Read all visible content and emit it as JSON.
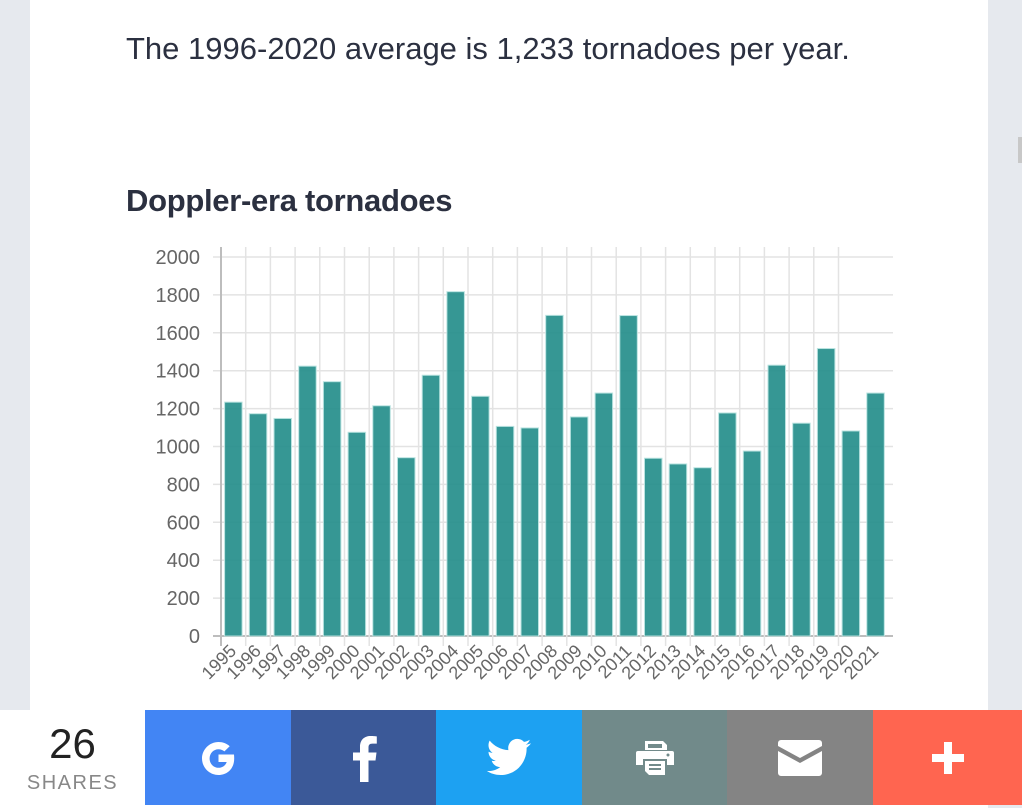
{
  "article": {
    "intro_text": "The 1996-2020 average is 1,233 tornadoes per year.",
    "chart_heading": "Doppler-era tornadoes"
  },
  "share_bar": {
    "count": "26",
    "count_label": "SHARES",
    "buttons": [
      {
        "name": "google",
        "icon": "google-icon",
        "color": "#4285f4"
      },
      {
        "name": "facebook",
        "icon": "facebook-icon",
        "color": "#3b5998"
      },
      {
        "name": "twitter",
        "icon": "twitter-icon",
        "color": "#1da1f2"
      },
      {
        "name": "print",
        "icon": "print-icon",
        "color": "#718a8a"
      },
      {
        "name": "email",
        "icon": "email-icon",
        "color": "#848484"
      },
      {
        "name": "more",
        "icon": "plus-icon",
        "color": "#ff6550"
      }
    ]
  },
  "chart_data": {
    "type": "bar",
    "title": "Doppler-era tornadoes",
    "xlabel": "",
    "ylabel": "",
    "categories": [
      "1995",
      "1996",
      "1997",
      "1998",
      "1999",
      "2000",
      "2001",
      "2002",
      "2003",
      "2004",
      "2005",
      "2006",
      "2007",
      "2008",
      "2009",
      "2010",
      "2011",
      "2012",
      "2013",
      "2014",
      "2015",
      "2016",
      "2017",
      "2018",
      "2019",
      "2020",
      "2021"
    ],
    "values": [
      1234,
      1173,
      1148,
      1424,
      1342,
      1075,
      1215,
      941,
      1376,
      1817,
      1265,
      1106,
      1098,
      1692,
      1156,
      1282,
      1691,
      938,
      908,
      888,
      1177,
      976,
      1429,
      1123,
      1517,
      1082,
      1282
    ],
    "ylim": [
      0,
      2000
    ],
    "yticks": [
      "0",
      "200",
      "400",
      "600",
      "800",
      "1000",
      "1200",
      "1400",
      "1600",
      "1800",
      "2000"
    ],
    "grid": true,
    "legend": "none",
    "bar_color": "#208c88"
  }
}
